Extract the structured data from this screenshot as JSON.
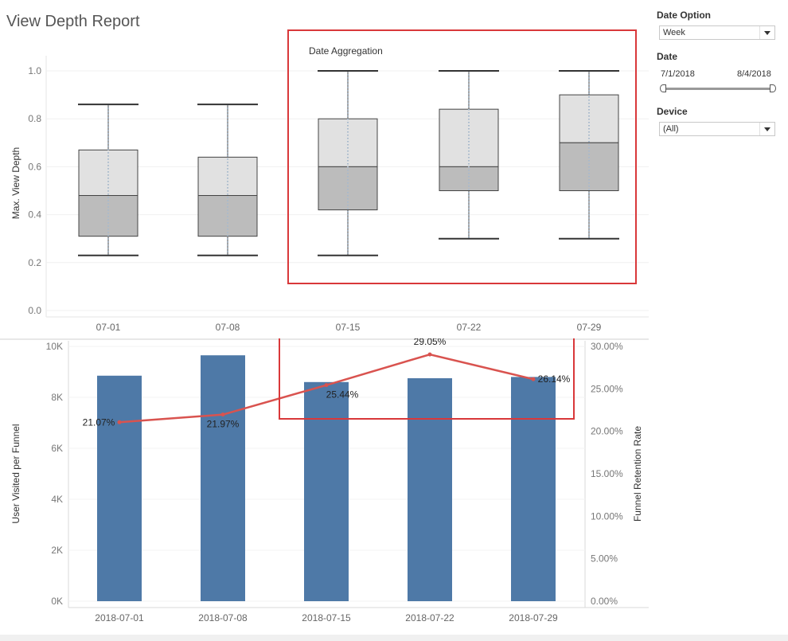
{
  "page": {
    "title": "View Depth Report"
  },
  "filters": {
    "date_option": {
      "label": "Date Option",
      "value": "Week"
    },
    "date": {
      "label": "Date",
      "start": "7/1/2018",
      "end": "8/4/2018"
    },
    "device": {
      "label": "Device",
      "value": "(All)"
    }
  },
  "colors": {
    "bar": "#4e79a7",
    "line": "#d9534f",
    "box_upper": "#e1e1e1",
    "box_lower": "#bcbcbc",
    "highlight": "#d9383a",
    "whisker": "#4a4a4a"
  },
  "chart_data": [
    {
      "type": "box",
      "annotation": "Date Aggregation",
      "ylabel": "Max. View Depth",
      "ylim": [
        0,
        1.0
      ],
      "yticks": [
        "0.0",
        "0.2",
        "0.4",
        "0.6",
        "0.8",
        "1.0"
      ],
      "categories": [
        "07-01",
        "07-08",
        "07-15",
        "07-22",
        "07-29"
      ],
      "boxes": [
        {
          "min": 0.23,
          "q1": 0.31,
          "median": 0.48,
          "q3": 0.67,
          "max": 0.86
        },
        {
          "min": 0.23,
          "q1": 0.31,
          "median": 0.48,
          "q3": 0.64,
          "max": 0.86
        },
        {
          "min": 0.23,
          "q1": 0.42,
          "median": 0.6,
          "q3": 0.8,
          "max": 1.0
        },
        {
          "min": 0.3,
          "q1": 0.5,
          "median": 0.6,
          "q3": 0.84,
          "max": 1.0
        },
        {
          "min": 0.3,
          "q1": 0.5,
          "median": 0.7,
          "q3": 0.9,
          "max": 1.0
        }
      ]
    },
    {
      "type": "bar+line",
      "categories": [
        "2018-07-01",
        "2018-07-08",
        "2018-07-15",
        "2018-07-22",
        "2018-07-29"
      ],
      "ylabel": "User Visited per Funnel",
      "y2label": "Funnel Retention Rate",
      "ylim": [
        0,
        10000
      ],
      "y2lim": [
        0,
        30
      ],
      "yticks": [
        "0K",
        "2K",
        "4K",
        "6K",
        "8K",
        "10K"
      ],
      "y2ticks": [
        "0.00%",
        "5.00%",
        "10.00%",
        "15.00%",
        "20.00%",
        "25.00%",
        "30.00%"
      ],
      "bars": [
        8850,
        9650,
        8600,
        8750,
        8800
      ],
      "line": [
        21.07,
        21.97,
        25.44,
        29.05,
        26.14
      ],
      "line_labels": [
        "21.07%",
        "21.97%",
        "25.44%",
        "29.05%",
        "26.14%"
      ]
    }
  ]
}
